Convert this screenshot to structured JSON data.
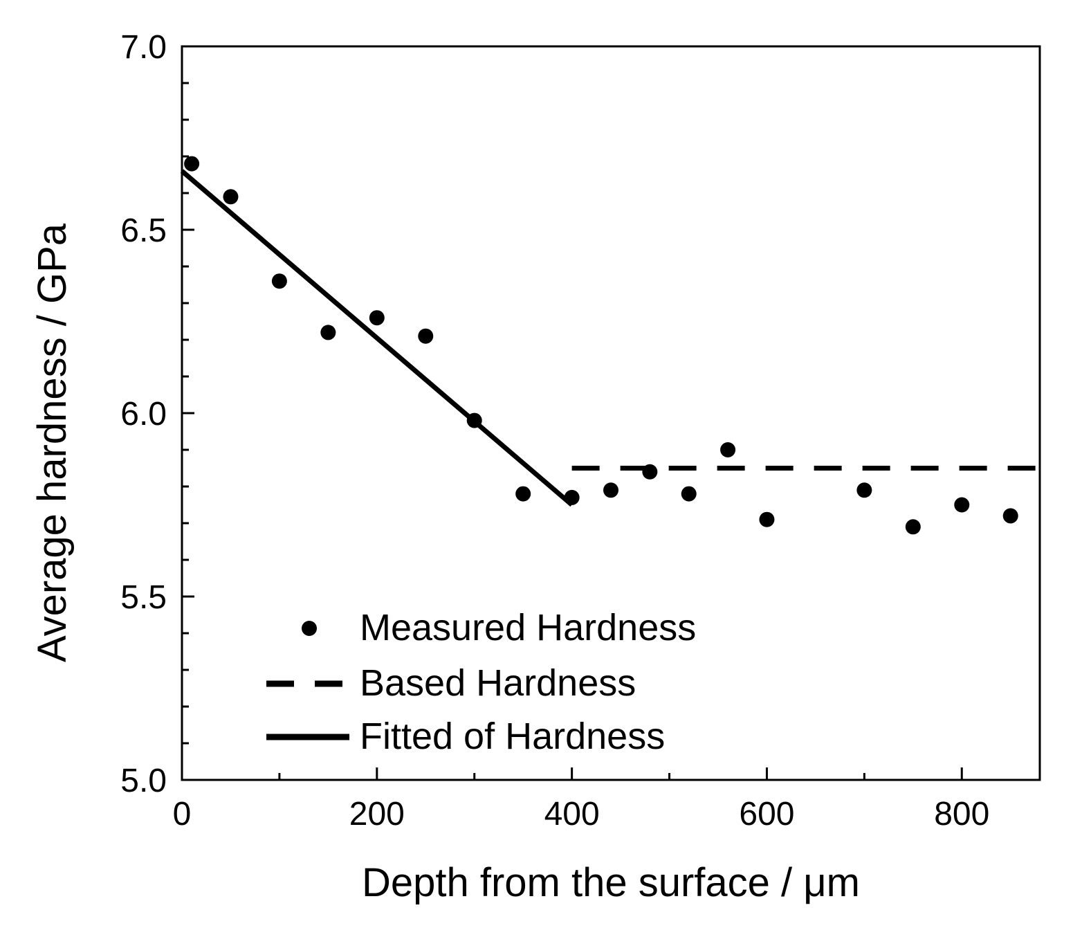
{
  "chart_data": {
    "type": "scatter",
    "title": "",
    "xlabel": "Depth from the surface / μm",
    "ylabel": "Average hardness / GPa",
    "xlim": [
      0,
      880
    ],
    "ylim": [
      5.0,
      7.0
    ],
    "grid": false,
    "legend_position": "bottom-left",
    "x_ticks": [
      0,
      200,
      400,
      600,
      800
    ],
    "x_tick_labels": [
      "0",
      "200",
      "400",
      "600",
      "800"
    ],
    "y_ticks": [
      5.0,
      5.5,
      6.0,
      6.5,
      7.0
    ],
    "y_tick_labels": [
      "5.0",
      "5.5",
      "6.0",
      "6.5",
      "7.0"
    ],
    "y_minor_step": 0.1,
    "series": [
      {
        "name": "Measured Hardness",
        "style": "marker",
        "x": [
          10,
          50,
          100,
          150,
          200,
          250,
          300,
          350,
          400,
          440,
          480,
          520,
          560,
          600,
          700,
          750,
          800,
          850
        ],
        "y": [
          6.68,
          6.59,
          6.36,
          6.22,
          6.26,
          6.21,
          5.98,
          5.78,
          5.77,
          5.79,
          5.84,
          5.78,
          5.9,
          5.71,
          5.79,
          5.69,
          5.75,
          5.72
        ]
      },
      {
        "name": "Based Hardness",
        "style": "dashed",
        "x": [
          400,
          880
        ],
        "y": [
          5.85,
          5.85
        ]
      },
      {
        "name": "Fitted of Hardness",
        "style": "solid",
        "x": [
          0,
          400
        ],
        "y": [
          6.66,
          5.75
        ]
      }
    ],
    "colors": {
      "marker": "#000000",
      "line": "#000000",
      "axis": "#000000"
    }
  }
}
